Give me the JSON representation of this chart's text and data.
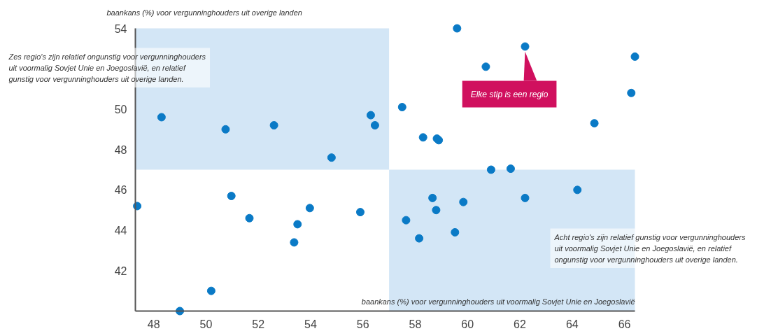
{
  "chart_data": {
    "type": "scatter",
    "xlabel": "baankans (%) voor vergunninghouders uit voormalig Sovjet Unie en Joegoslavië",
    "ylabel": "baankans (%) voor vergunninghouders uit overige landen",
    "series": [
      {
        "color": "#0a7ac6",
        "x": [
          48.3,
          50.75,
          52.6,
          54.8,
          56.3,
          56.46,
          57.5,
          59.6,
          62.2,
          60.7,
          66.4,
          66.26,
          64.85,
          58.3,
          58.83,
          58.9,
          60.9,
          61.65,
          47.37,
          50.97,
          51.66,
          53.97,
          53.5,
          53.37,
          55.9,
          50.2,
          49.0,
          64.2,
          62.2,
          58.66,
          59.84,
          58.8,
          57.65,
          59.52,
          58.15
        ],
        "values": [
          49.6,
          49.0,
          49.2,
          47.6,
          49.7,
          49.2,
          50.1,
          54.0,
          53.1,
          52.1,
          52.6,
          50.8,
          49.3,
          48.6,
          48.54,
          48.46,
          47.0,
          47.05,
          45.2,
          45.7,
          44.6,
          45.1,
          44.3,
          43.4,
          44.9,
          41.0,
          40.0,
          46.0,
          45.6,
          45.6,
          45.4,
          45.0,
          44.5,
          43.9,
          43.6
        ]
      }
    ],
    "marker": "circle",
    "xlim": [
      47.3,
      66.4
    ],
    "ylim": [
      40,
      54
    ],
    "xticks": [
      48,
      50,
      52,
      54,
      56,
      58,
      60,
      62,
      64,
      66
    ],
    "yticks": [
      42,
      44,
      46,
      48,
      50,
      54
    ],
    "bands": [
      {
        "axis": "x",
        "from": 47.3,
        "to": 57,
        "color": "#d3e6f6"
      },
      {
        "axis": "y",
        "from": 40,
        "to": 47,
        "color": "#d3e6f6"
      }
    ],
    "annotations": [
      {
        "text": "Elke stip is een regio",
        "x": 62.2,
        "y": 53.1
      },
      "Zes regio's zijn relatief ongunstig voor vergunninghouders\nuit voormalig Sovjet Unie en Joegoslavië, en relatief\ngunstig voor vergunninghouders uit overige landen.",
      "Acht regio's zijn relatief gunstig voor vergunninghouders\nuit voormalig Sovjet Unie en Joegoslavië, en relatief\nongunstig voor vergunninghouders uit overige landen."
    ]
  }
}
